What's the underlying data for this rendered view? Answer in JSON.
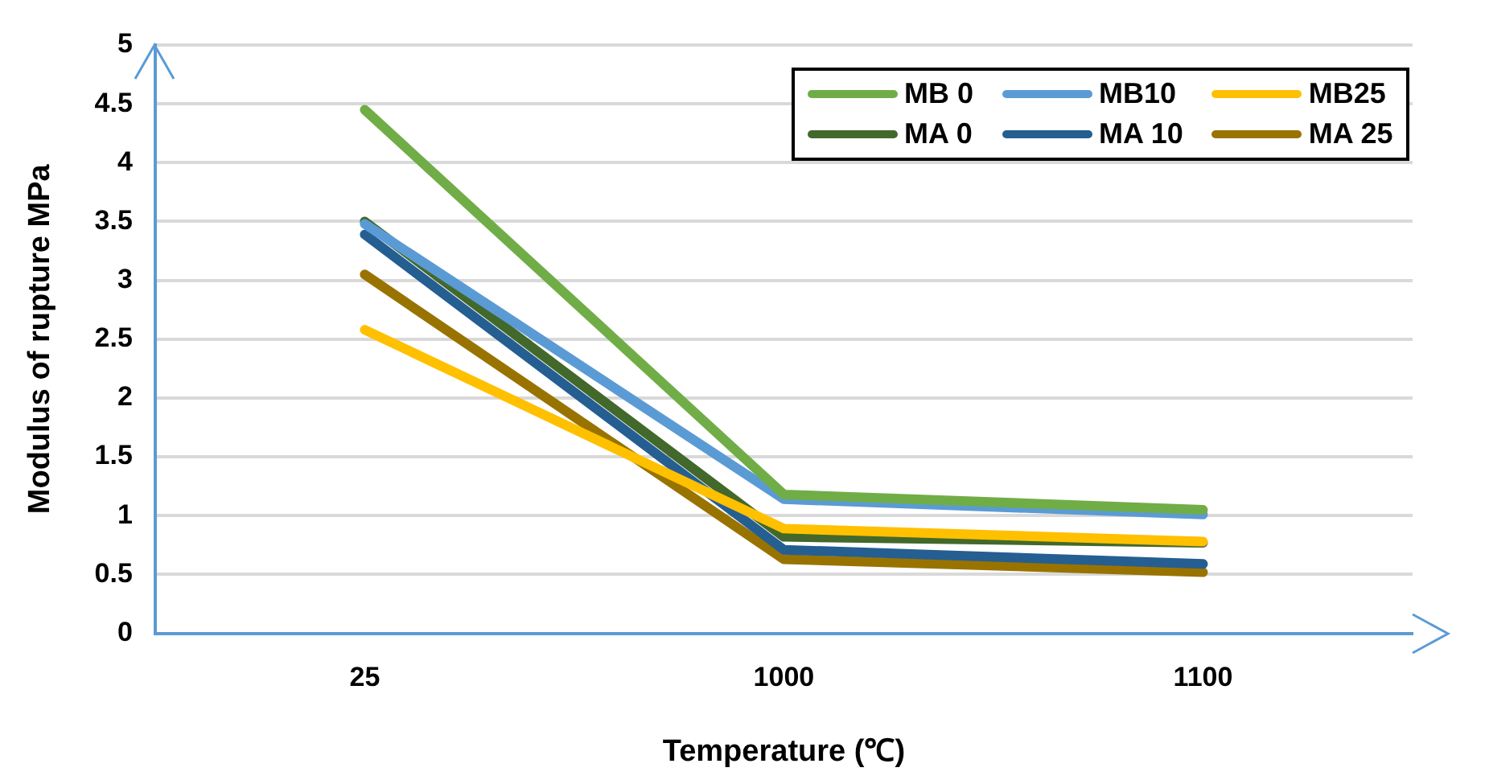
{
  "chart_data": {
    "type": "line",
    "xlabel": "Temperature (℃)",
    "ylabel": "Modulus of rupture MPa",
    "categories": [
      "25",
      "1000",
      "1100"
    ],
    "series": [
      {
        "name": "MB 0",
        "color": "#70ad47",
        "values": [
          4.45,
          1.18,
          1.05
        ]
      },
      {
        "name": "MB10",
        "color": "#5b9bd5",
        "values": [
          3.48,
          1.14,
          1.01
        ]
      },
      {
        "name": "MB25",
        "color": "#ffc000",
        "values": [
          2.58,
          0.89,
          0.78
        ]
      },
      {
        "name": "MA 0",
        "color": "#43682b",
        "values": [
          3.5,
          0.82,
          0.77
        ]
      },
      {
        "name": "MA 10",
        "color": "#255e91",
        "values": [
          3.39,
          0.71,
          0.59
        ]
      },
      {
        "name": "MA 25",
        "color": "#997300",
        "values": [
          3.05,
          0.63,
          0.52
        ]
      }
    ],
    "ylim": [
      0,
      5
    ],
    "yticks": [
      0,
      0.5,
      1,
      1.5,
      2,
      2.5,
      3,
      3.5,
      4,
      4.5,
      5
    ],
    "grid": "y",
    "legend": "top right",
    "marker": "none",
    "line_style": "solid"
  }
}
